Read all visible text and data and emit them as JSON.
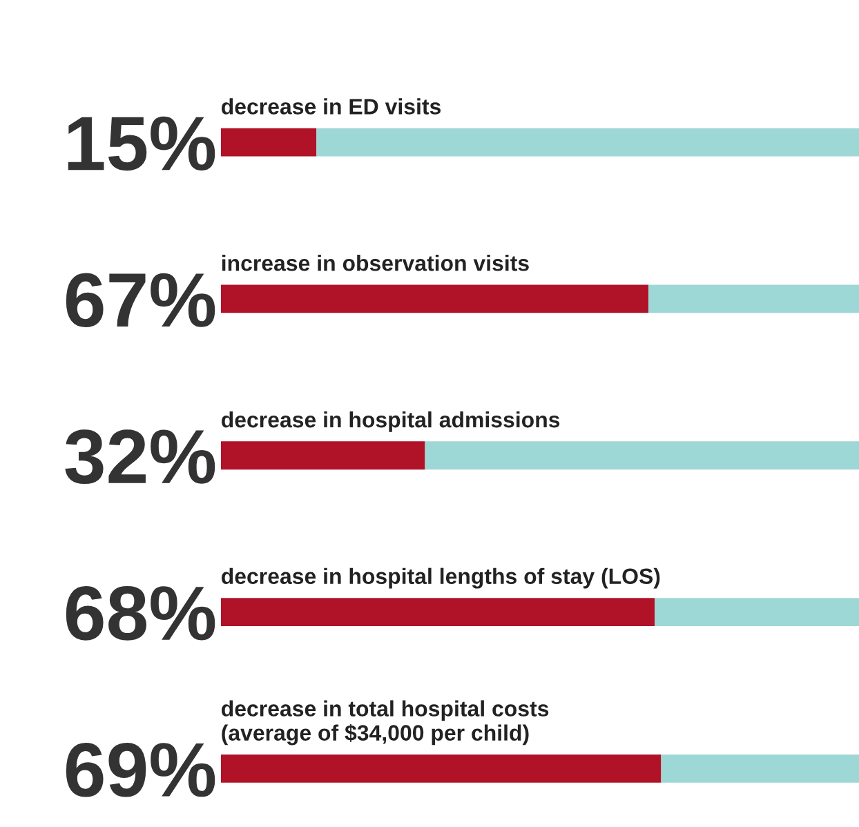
{
  "chart_data": {
    "type": "bar",
    "orientation": "horizontal",
    "stacked": true,
    "categories": [
      "decrease in ED visits",
      "increase in observation visits",
      "decrease in hospital admissions",
      "decrease in hospital lengths of stay (LOS)",
      "decrease in total hospital costs\n(average of $34,000 per child)"
    ],
    "series": [
      {
        "color": "#b01228",
        "values": [
          15,
          67,
          32,
          68,
          69
        ],
        "value_labels": [
          "15%",
          "67%",
          "32%",
          "68%",
          "69%"
        ]
      },
      {
        "color": "#9ed8d6",
        "values": [
          85,
          33,
          68,
          32,
          31
        ]
      }
    ],
    "xlim": [
      0,
      100
    ],
    "tick_labels": false
  }
}
